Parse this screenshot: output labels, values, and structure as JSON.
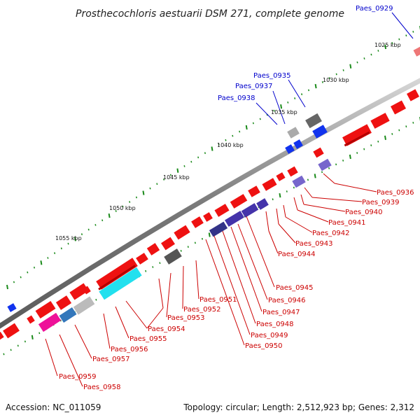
{
  "title": "Prosthecochloris aestuarii DSM 271, complete genome",
  "footer": {
    "accession": "Accession: NC_011059",
    "summary": "Topology: circular; Length: 2,512,923 bp; Genes: 2,312"
  },
  "colors": {
    "forward_label": "#0000cc",
    "reverse_label": "#cc0000",
    "backbone": "#888888",
    "tick": "#1a8a1a"
  },
  "tick_labels": [
    "1025 kbp",
    "1030 kbp",
    "1035 kbp",
    "1040 kbp",
    "1045 kbp",
    "1050 kbp",
    "1055 kbp"
  ],
  "forward_labels": [
    "Paes_0929",
    "Paes_0935",
    "Paes_0937",
    "Paes_0938"
  ],
  "reverse_labels": [
    "Paes_0936",
    "Paes_0939",
    "Paes_0940",
    "Paes_0941",
    "Paes_0942",
    "Paes_0943",
    "Paes_0944",
    "Paes_0945",
    "Paes_0946",
    "Paes_0947",
    "Paes_0948",
    "Paes_0949",
    "Paes_0950",
    "Paes_0951",
    "Paes_0952",
    "Paes_0953",
    "Paes_0954",
    "Paes_0955",
    "Paes_0956",
    "Paes_0957",
    "Paes_0958",
    "Paes_0959"
  ]
}
